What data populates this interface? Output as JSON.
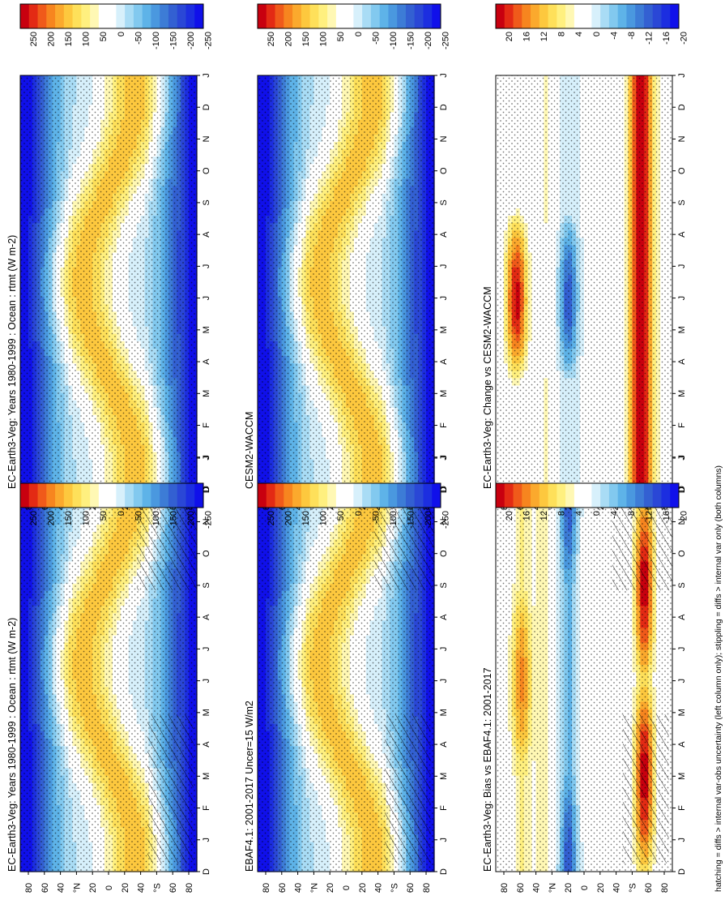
{
  "footnote": "hatching = diffs > internal var-obs uncertainty (left column only); stippling = diffs > internal var only (both columns)",
  "month_ticks": [
    "D",
    "J",
    "F",
    "M",
    "A",
    "M",
    "J",
    "J",
    "A",
    "S",
    "O",
    "N",
    "D",
    "J"
  ],
  "lat_ticks": [
    "80",
    "60",
    "40",
    "°N",
    "20",
    "0",
    "20",
    "40",
    "°S",
    "60",
    "80"
  ],
  "colorbar_wide": {
    "labels": [
      "250",
      "200",
      "150",
      "100",
      "50",
      "0",
      "-50",
      "-100",
      "-150",
      "-200",
      "-250"
    ],
    "colors": [
      "#c8000f",
      "#e32a14",
      "#f05a1a",
      "#f7851f",
      "#fba92d",
      "#fdc83e",
      "#fee05a",
      "#fff07f",
      "#fff8b4",
      "#ffffff",
      "#ffffff",
      "#d7f0fb",
      "#a9dcf5",
      "#82c9ef",
      "#5eb3e8",
      "#4a98df",
      "#3d7cd6",
      "#3360d2",
      "#2a47d6",
      "#1c2ee0",
      "#1010ea"
    ]
  },
  "colorbar_narrow": {
    "labels": [
      "20",
      "16",
      "12",
      "8",
      "4",
      "0",
      "-4",
      "-8",
      "-12",
      "-16",
      "-20"
    ],
    "colors": [
      "#c8000f",
      "#e32a14",
      "#f05a1a",
      "#f7851f",
      "#fba92d",
      "#fdc83e",
      "#fee05a",
      "#fff07f",
      "#fff8b4",
      "#ffffff",
      "#ffffff",
      "#d7f0fb",
      "#a9dcf5",
      "#82c9ef",
      "#5eb3e8",
      "#4a98df",
      "#3d7cd6",
      "#3360d2",
      "#2a47d6",
      "#1c2ee0",
      "#1010ea"
    ]
  },
  "chart_data": [
    {
      "type": "heatmap",
      "id": "bl-top",
      "title": "EC-Earth3-Veg: Years 1980-1999 : Ocean : rtmt (W m-2)",
      "kind": "field",
      "hatch": true,
      "colorbar": "wide",
      "x": "month",
      "y": "latitude"
    },
    {
      "type": "heatmap",
      "id": "tr-top",
      "title": "EC-Earth3-Veg: Years 1980-1999 : Ocean : rtmt (W m-2)",
      "kind": "field",
      "hatch": false,
      "colorbar": "wide",
      "x": "month",
      "y": "latitude"
    },
    {
      "type": "heatmap",
      "id": "bl-mid",
      "title": "EBAF4.1: 2001-2017 Uncer=15 W/m2",
      "kind": "field",
      "hatch": true,
      "colorbar": "wide",
      "x": "month",
      "y": "latitude"
    },
    {
      "type": "heatmap",
      "id": "tr-mid",
      "title": "CESM2-WACCM",
      "kind": "field",
      "hatch": false,
      "colorbar": "wide",
      "x": "month",
      "y": "latitude"
    },
    {
      "type": "heatmap",
      "id": "bl-bot",
      "title": "EC-Earth3-Veg: Bias vs EBAF4.1: 2001-2017",
      "kind": "bias",
      "hatch": true,
      "colorbar": "narrow",
      "x": "month",
      "y": "latitude"
    },
    {
      "type": "heatmap",
      "id": "tr-bot",
      "title": "EC-Earth3-Veg: Change vs CESM2-WACCM",
      "kind": "change",
      "hatch": false,
      "colorbar": "narrow",
      "x": "month",
      "y": "latitude"
    }
  ]
}
